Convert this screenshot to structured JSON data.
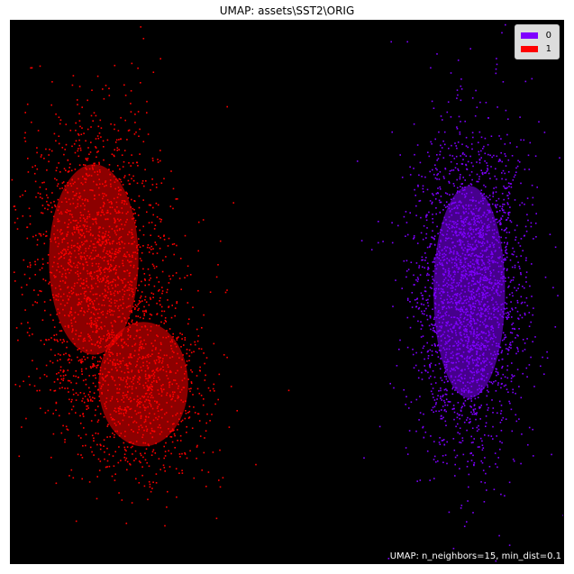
{
  "chart_data": {
    "type": "scatter",
    "title": "UMAP: assets\\SST2\\ORIG",
    "xlabel": "",
    "ylabel": "",
    "xlim": [
      0,
      100
    ],
    "ylim": [
      0,
      100
    ],
    "grid": false,
    "axes_visible": false,
    "background": "#000000",
    "legend_position": "top-right",
    "annotation": "UMAP: n_neighbors=15, min_dist=0.1",
    "series": [
      {
        "name": "0",
        "color": "#7f00ff",
        "clusters": [
          {
            "cx": 83,
            "cy": 50,
            "sx": 4.8,
            "sy": 14.5,
            "weight": 1.0
          }
        ]
      },
      {
        "name": "1",
        "color": "#ff0000",
        "clusters": [
          {
            "cx": 15,
            "cy": 56,
            "sx": 6.0,
            "sy": 13.0,
            "weight": 0.65
          },
          {
            "cx": 24,
            "cy": 33,
            "sx": 6.0,
            "sy": 8.5,
            "weight": 0.35
          }
        ]
      }
    ]
  }
}
